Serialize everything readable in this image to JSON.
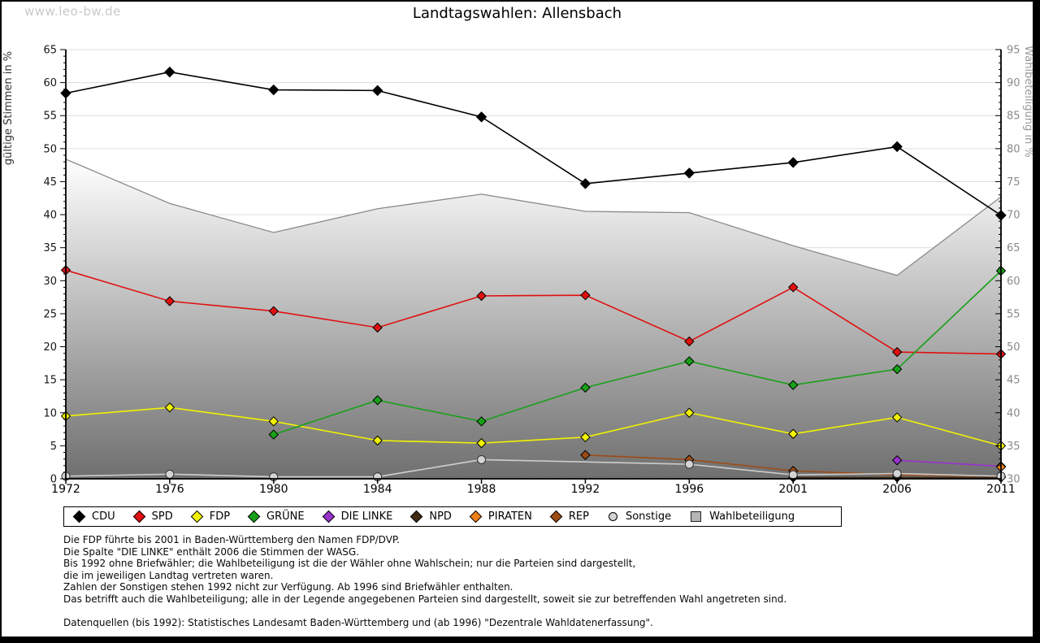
{
  "watermark": "www.leo-bw.de",
  "title": "Landtagswahlen: Allensbach",
  "chart_data": {
    "type": "line",
    "title": "Landtagswahlen: Allensbach",
    "categories": [
      "1972",
      "1976",
      "1980",
      "1984",
      "1988",
      "1992",
      "1996",
      "2001",
      "2006",
      "2011"
    ],
    "left_axis": {
      "label": "gültige Stimmen in %",
      "min": 0,
      "max": 65,
      "tick_step": 5,
      "minor_step": 1
    },
    "right_axis": {
      "label": "Wahlbeteiligung in %",
      "min": 30,
      "max": 95,
      "tick_step": 5,
      "minor_step": 1
    },
    "grid": true,
    "legend_position": "bottom",
    "series": [
      {
        "name": "CDU",
        "color": "#000000",
        "marker": "diamond",
        "axis": "left",
        "values": [
          58.4,
          61.6,
          58.9,
          58.8,
          54.8,
          44.7,
          46.3,
          47.9,
          50.3,
          39.9
        ]
      },
      {
        "name": "SPD",
        "color": "#e01010",
        "marker": "diamond",
        "axis": "left",
        "values": [
          31.6,
          26.9,
          25.4,
          22.9,
          27.7,
          27.8,
          20.8,
          29.0,
          19.2,
          18.9
        ]
      },
      {
        "name": "FDP",
        "color": "#f2f200",
        "marker": "diamond",
        "axis": "left",
        "values": [
          9.5,
          10.8,
          8.7,
          5.8,
          5.4,
          6.3,
          10.0,
          6.8,
          9.3,
          5.0
        ]
      },
      {
        "name": "GRÜNE",
        "color": "#18a018",
        "marker": "diamond",
        "axis": "left",
        "values": [
          null,
          null,
          6.7,
          11.9,
          8.7,
          13.8,
          17.8,
          14.2,
          16.6,
          31.5
        ]
      },
      {
        "name": "DIE LINKE",
        "color": "#9932cc",
        "marker": "diamond",
        "axis": "left",
        "values": [
          null,
          null,
          null,
          null,
          null,
          null,
          null,
          null,
          2.8,
          1.9
        ]
      },
      {
        "name": "NPD",
        "color": "#402a12",
        "marker": "diamond",
        "axis": "left",
        "values": [
          null,
          null,
          null,
          null,
          null,
          null,
          null,
          0.2,
          0.2,
          0.2
        ]
      },
      {
        "name": "PIRATEN",
        "color": "#ef8018",
        "marker": "diamond",
        "axis": "left",
        "values": [
          null,
          null,
          null,
          null,
          null,
          null,
          null,
          null,
          null,
          1.8
        ]
      },
      {
        "name": "REP",
        "color": "#9e4b15",
        "marker": "diamond",
        "axis": "left",
        "values": [
          null,
          null,
          null,
          null,
          null,
          3.6,
          2.9,
          1.2,
          0.6,
          0.4
        ]
      },
      {
        "name": "Sonstige",
        "color": "#d4d4d4",
        "marker": "circle",
        "line_color": "#cfcfcf",
        "axis": "left",
        "values": [
          0.4,
          0.7,
          0.3,
          0.3,
          2.9,
          null,
          2.2,
          0.6,
          0.8,
          0.4
        ]
      },
      {
        "name": "Wahlbeteiligung",
        "color": "#b5b5b5",
        "marker": "square",
        "axis": "right",
        "style": "area",
        "area_gradient": [
          "#ffffff",
          "#6f6f6f"
        ],
        "edge_color": "#8a8a8a",
        "values": [
          78.4,
          71.7,
          67.3,
          70.9,
          73.1,
          70.5,
          70.3,
          65.3,
          60.8,
          72.7
        ]
      }
    ]
  },
  "colors": {
    "gridline": "#dcdcdc",
    "axis": "#000000",
    "right_tick_label": "#8a8a8a",
    "left_tick_label": "#161616"
  },
  "footnotes": [
    "Die FDP führte bis 2001 in Baden-Württemberg den Namen FDP/DVP.",
    "Die Spalte \"DIE LINKE\" enthält 2006 die Stimmen der WASG.",
    "Bis 1992 ohne Briefwähler; die Wahlbeteiligung ist die der Wähler ohne Wahlschein; nur die Parteien sind dargestellt,",
    "die im jeweiligen Landtag vertreten waren.",
    "Zahlen der Sonstigen stehen 1992 nicht zur Verfügung. Ab 1996 sind Briefwähler enthalten.",
    "Das betrifft auch die Wahlbeteiligung; alle in der Legende angegebenen Parteien sind dargestellt, soweit sie zur betreffenden Wahl angetreten sind.",
    "",
    "Datenquellen (bis 1992): Statistisches Landesamt Baden-Württemberg und (ab 1996) \"Dezentrale Wahldatenerfassung\"."
  ]
}
